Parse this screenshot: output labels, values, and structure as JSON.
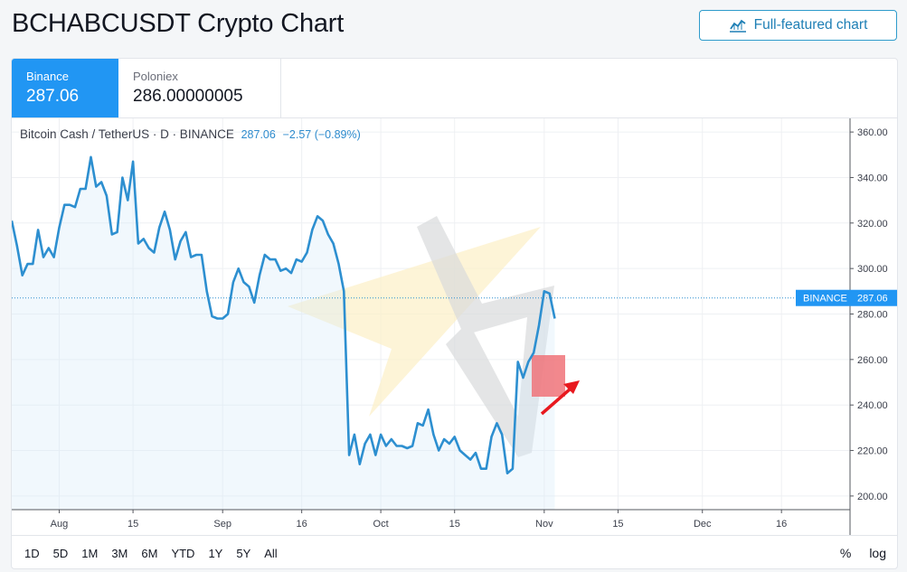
{
  "page": {
    "title": "BCHABCUSDT Crypto Chart"
  },
  "toolbar": {
    "full_chart_label": "Full-featured chart",
    "full_chart_icon": "chart-line-icon"
  },
  "exchanges": [
    {
      "name": "Binance",
      "price": "287.06",
      "active": true
    },
    {
      "name": "Poloniex",
      "price": "286.00000005",
      "active": false
    }
  ],
  "legend": {
    "pair": "Bitcoin Cash / TetherUS · D · BINANCE",
    "price": "287.06",
    "change": "−2.57 (−0.89%)"
  },
  "price_tag": {
    "exchange": "BINANCE",
    "value": "287.06"
  },
  "ranges": [
    "1D",
    "5D",
    "1M",
    "3M",
    "6M",
    "YTD",
    "1Y",
    "5Y",
    "All"
  ],
  "scale_options": {
    "percent": "%",
    "log": "log"
  },
  "colors": {
    "accent": "#2196f3",
    "line": "#2d8fd0",
    "highlight": "#f07379",
    "arrow": "#e8191f"
  },
  "chart_data": {
    "type": "line",
    "ylim": [
      194,
      366
    ],
    "y_ticks": [
      200,
      220,
      240,
      260,
      280,
      300,
      320,
      340,
      360
    ],
    "y_tick_labels": [
      "200.00",
      "220.00",
      "240.00",
      "260.00",
      "280.00",
      "300.00",
      "320.00",
      "340.00",
      "360.00"
    ],
    "x_start": "2019-07-23",
    "x_end": "2019-12-31",
    "x_ticks": [
      {
        "date": "2019-08-01",
        "label": "Aug"
      },
      {
        "date": "2019-08-15",
        "label": "15"
      },
      {
        "date": "2019-09-01",
        "label": "Sep"
      },
      {
        "date": "2019-09-16",
        "label": "16"
      },
      {
        "date": "2019-10-01",
        "label": "Oct"
      },
      {
        "date": "2019-10-15",
        "label": "15"
      },
      {
        "date": "2019-11-01",
        "label": "Nov"
      },
      {
        "date": "2019-11-15",
        "label": "15"
      },
      {
        "date": "2019-12-01",
        "label": "Dec"
      },
      {
        "date": "2019-12-16",
        "label": "16"
      }
    ],
    "last_price": 287.06,
    "series": [
      {
        "dates": [
          "2019-07-23",
          "2019-07-24",
          "2019-07-25",
          "2019-07-26",
          "2019-07-27",
          "2019-07-28",
          "2019-07-29",
          "2019-07-30",
          "2019-07-31",
          "2019-08-01",
          "2019-08-02",
          "2019-08-03",
          "2019-08-04",
          "2019-08-05",
          "2019-08-06",
          "2019-08-07",
          "2019-08-08",
          "2019-08-09",
          "2019-08-10",
          "2019-08-11",
          "2019-08-12",
          "2019-08-13",
          "2019-08-14",
          "2019-08-15",
          "2019-08-16",
          "2019-08-17",
          "2019-08-18",
          "2019-08-19",
          "2019-08-20",
          "2019-08-21",
          "2019-08-22",
          "2019-08-23",
          "2019-08-24",
          "2019-08-25",
          "2019-08-26",
          "2019-08-27",
          "2019-08-28",
          "2019-08-29",
          "2019-08-30",
          "2019-08-31",
          "2019-09-01",
          "2019-09-02",
          "2019-09-03",
          "2019-09-04",
          "2019-09-05",
          "2019-09-06",
          "2019-09-07",
          "2019-09-08",
          "2019-09-09",
          "2019-09-10",
          "2019-09-11",
          "2019-09-12",
          "2019-09-13",
          "2019-09-14",
          "2019-09-15",
          "2019-09-16",
          "2019-09-17",
          "2019-09-18",
          "2019-09-19",
          "2019-09-20",
          "2019-09-21",
          "2019-09-22",
          "2019-09-23",
          "2019-09-24",
          "2019-09-25",
          "2019-09-26",
          "2019-09-27",
          "2019-09-28",
          "2019-09-29",
          "2019-09-30",
          "2019-10-01",
          "2019-10-02",
          "2019-10-03",
          "2019-10-04",
          "2019-10-05",
          "2019-10-06",
          "2019-10-07",
          "2019-10-08",
          "2019-10-09",
          "2019-10-10",
          "2019-10-11",
          "2019-10-12",
          "2019-10-13",
          "2019-10-14",
          "2019-10-15",
          "2019-10-16",
          "2019-10-17",
          "2019-10-18",
          "2019-10-19",
          "2019-10-20",
          "2019-10-21",
          "2019-10-22",
          "2019-10-23",
          "2019-10-24",
          "2019-10-25",
          "2019-10-26",
          "2019-10-27",
          "2019-10-28",
          "2019-10-29",
          "2019-10-30",
          "2019-10-31",
          "2019-11-01",
          "2019-11-02",
          "2019-11-03"
        ],
        "values": [
          321,
          310,
          297,
          302,
          302,
          317,
          305,
          309,
          305,
          318,
          328,
          328,
          327,
          335,
          335,
          349,
          336,
          338,
          332,
          315,
          316,
          340,
          330,
          347,
          311,
          313,
          309,
          307,
          318,
          325,
          317,
          304,
          312,
          316,
          305,
          306,
          306,
          290,
          279,
          278,
          278,
          280,
          294,
          300,
          294,
          292,
          285,
          297,
          306,
          304,
          304,
          299,
          300,
          298,
          304,
          303,
          307,
          317,
          323,
          321,
          315,
          311,
          302,
          290,
          218,
          227,
          214,
          223,
          227,
          218,
          227,
          222,
          225,
          222,
          222,
          221,
          222,
          232,
          231,
          238,
          227,
          220,
          225,
          223,
          226,
          220,
          218,
          216,
          219,
          212,
          212,
          226,
          232,
          227,
          210,
          212,
          259,
          252,
          259,
          263,
          275,
          290,
          289,
          278
        ]
      }
    ]
  }
}
